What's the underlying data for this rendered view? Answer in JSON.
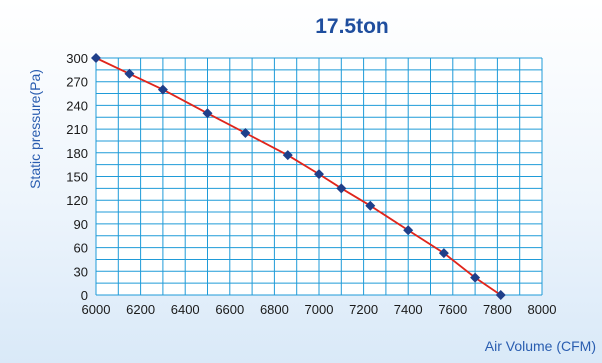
{
  "chart_data": {
    "type": "line",
    "title": "17.5ton",
    "xlabel": "Air Volume (CFM)",
    "ylabel": "Static pressure(Pa)",
    "xlim": [
      6000,
      8000
    ],
    "ylim": [
      0,
      300
    ],
    "x_ticks": [
      "6000",
      "6200",
      "6400",
      "6600",
      "6800",
      "7000",
      "7200",
      "7400",
      "7600",
      "7800",
      "8000"
    ],
    "y_ticks": [
      "0",
      "30",
      "60",
      "90",
      "120",
      "150",
      "180",
      "210",
      "240",
      "270",
      "300"
    ],
    "grid": true,
    "legend": "none",
    "series": [
      {
        "line_color": "#e0251b",
        "marker_color": "#1f3f8a",
        "marker": "diamond",
        "x": [
          6000,
          6150,
          6300,
          6500,
          6670,
          6860,
          7000,
          7100,
          7230,
          7400,
          7560,
          7700,
          7815
        ],
        "y": [
          300,
          280,
          260,
          230,
          205,
          177,
          153,
          135,
          113,
          82,
          53,
          22,
          0
        ]
      }
    ]
  },
  "colors": {
    "plot_background": "#ffffff",
    "grid": "#1f9bd8",
    "title": "#1f4e9e",
    "axis_label": "#2a5db0"
  }
}
